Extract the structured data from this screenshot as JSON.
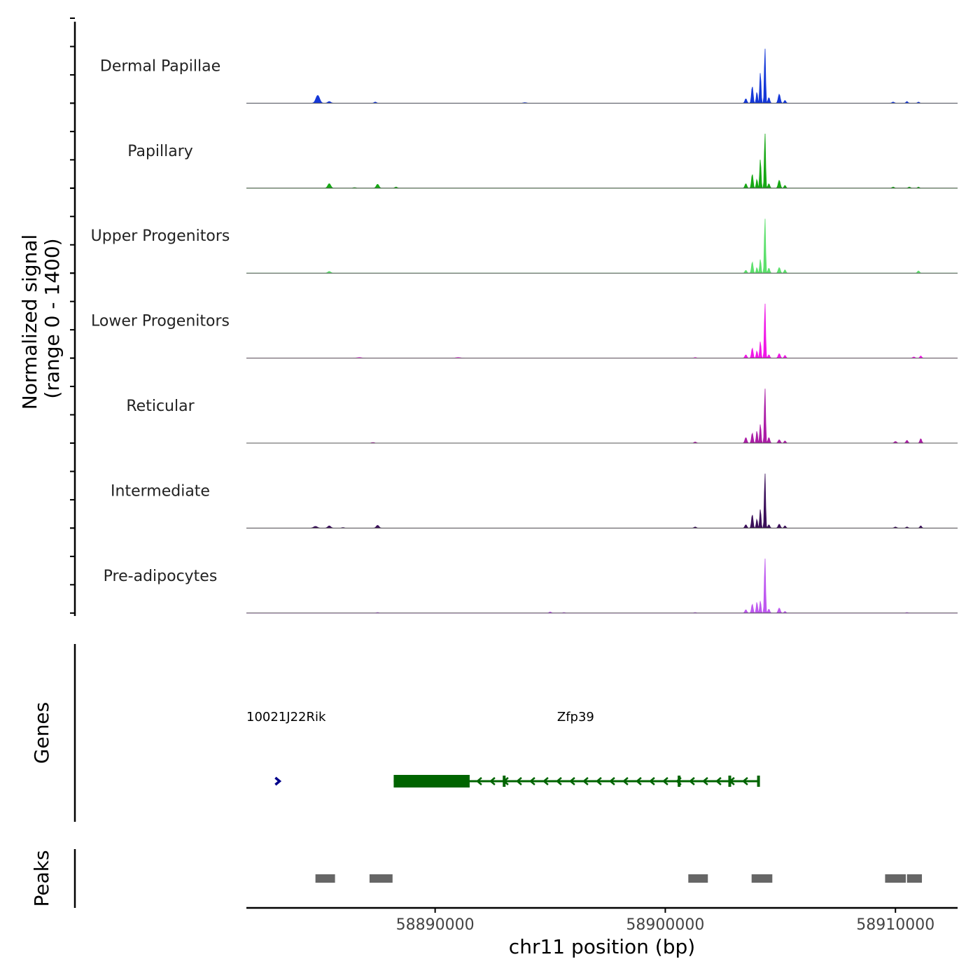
{
  "chart_data": {
    "type": "area",
    "title": "",
    "ylabel": "Normalized signal",
    "ylabel_range": "(range 0 - 1400)",
    "ylim": [
      0,
      1400
    ],
    "xlabel": "chr11 position (bp)",
    "xlim": [
      58881800,
      58912700
    ],
    "x_ticks": [
      58890000,
      58900000,
      58910000
    ],
    "x_tick_labels": [
      "58890000",
      "58900000",
      "58910000"
    ],
    "tracks": [
      {
        "name": "Dermal Papillae",
        "color": "#1538d8",
        "peaks": [
          [
            58884900,
            0.14,
            250
          ],
          [
            58885400,
            0.03,
            200
          ],
          [
            58887400,
            0.02,
            150
          ],
          [
            58893900,
            0.01,
            200
          ],
          [
            58903500,
            0.08,
            130
          ],
          [
            58903780,
            0.3,
            110
          ],
          [
            58903980,
            0.2,
            90
          ],
          [
            58904130,
            0.55,
            90
          ],
          [
            58904330,
            1.0,
            80
          ],
          [
            58904500,
            0.1,
            120
          ],
          [
            58904950,
            0.16,
            140
          ],
          [
            58905200,
            0.05,
            120
          ],
          [
            58909900,
            0.02,
            150
          ],
          [
            58910500,
            0.03,
            120
          ],
          [
            58911000,
            0.02,
            120
          ]
        ]
      },
      {
        "name": "Papillary",
        "color": "#16a814",
        "peaks": [
          [
            58885400,
            0.08,
            200
          ],
          [
            58887500,
            0.07,
            180
          ],
          [
            58888300,
            0.02,
            160
          ],
          [
            58886500,
            0.01,
            200
          ],
          [
            58903500,
            0.08,
            130
          ],
          [
            58903780,
            0.25,
            110
          ],
          [
            58903980,
            0.16,
            90
          ],
          [
            58904130,
            0.52,
            90
          ],
          [
            58904330,
            1.0,
            80
          ],
          [
            58904500,
            0.08,
            120
          ],
          [
            58904950,
            0.14,
            140
          ],
          [
            58905200,
            0.05,
            120
          ],
          [
            58909900,
            0.02,
            150
          ],
          [
            58910600,
            0.02,
            150
          ],
          [
            58911000,
            0.02,
            120
          ]
        ]
      },
      {
        "name": "Upper Progenitors",
        "color": "#5ce06c",
        "peaks": [
          [
            58885400,
            0.03,
            200
          ],
          [
            58903500,
            0.05,
            130
          ],
          [
            58903780,
            0.2,
            110
          ],
          [
            58903980,
            0.1,
            90
          ],
          [
            58904130,
            0.25,
            90
          ],
          [
            58904330,
            1.0,
            80
          ],
          [
            58904500,
            0.09,
            120
          ],
          [
            58904950,
            0.1,
            140
          ],
          [
            58905200,
            0.06,
            120
          ],
          [
            58911000,
            0.04,
            140
          ]
        ]
      },
      {
        "name": "Lower Progenitors",
        "color": "#f018e6",
        "peaks": [
          [
            58886700,
            0.01,
            300
          ],
          [
            58891000,
            0.01,
            300
          ],
          [
            58901300,
            0.01,
            150
          ],
          [
            58903500,
            0.06,
            130
          ],
          [
            58903780,
            0.18,
            110
          ],
          [
            58903980,
            0.13,
            90
          ],
          [
            58904130,
            0.3,
            90
          ],
          [
            58904330,
            1.0,
            80
          ],
          [
            58904500,
            0.06,
            120
          ],
          [
            58904950,
            0.08,
            140
          ],
          [
            58905200,
            0.05,
            120
          ],
          [
            58910800,
            0.02,
            150
          ],
          [
            58911100,
            0.04,
            120
          ]
        ]
      },
      {
        "name": "Reticular",
        "color": "#ab1da6",
        "peaks": [
          [
            58887300,
            0.01,
            200
          ],
          [
            58901300,
            0.02,
            150
          ],
          [
            58903500,
            0.1,
            130
          ],
          [
            58903780,
            0.18,
            110
          ],
          [
            58903980,
            0.22,
            90
          ],
          [
            58904130,
            0.34,
            90
          ],
          [
            58904330,
            1.0,
            80
          ],
          [
            58904500,
            0.1,
            120
          ],
          [
            58904950,
            0.06,
            140
          ],
          [
            58905200,
            0.04,
            120
          ],
          [
            58910000,
            0.03,
            150
          ],
          [
            58910500,
            0.05,
            130
          ],
          [
            58911100,
            0.08,
            120
          ]
        ]
      },
      {
        "name": "Intermediate",
        "color": "#3b0f5a",
        "peaks": [
          [
            58884800,
            0.03,
            250
          ],
          [
            58885400,
            0.04,
            200
          ],
          [
            58887500,
            0.05,
            180
          ],
          [
            58886000,
            0.01,
            150
          ],
          [
            58901300,
            0.02,
            150
          ],
          [
            58903500,
            0.06,
            130
          ],
          [
            58903780,
            0.24,
            110
          ],
          [
            58903980,
            0.16,
            90
          ],
          [
            58904130,
            0.34,
            90
          ],
          [
            58904330,
            1.0,
            80
          ],
          [
            58904500,
            0.06,
            120
          ],
          [
            58904950,
            0.07,
            140
          ],
          [
            58905200,
            0.04,
            120
          ],
          [
            58910000,
            0.02,
            150
          ],
          [
            58910500,
            0.02,
            130
          ],
          [
            58911100,
            0.04,
            120
          ]
        ]
      },
      {
        "name": "Pre-adipocytes",
        "color": "#be58f0",
        "peaks": [
          [
            58887500,
            0.01,
            150
          ],
          [
            58895000,
            0.02,
            150
          ],
          [
            58895600,
            0.01,
            150
          ],
          [
            58901300,
            0.01,
            150
          ],
          [
            58903500,
            0.06,
            130
          ],
          [
            58903780,
            0.16,
            110
          ],
          [
            58903980,
            0.2,
            90
          ],
          [
            58904130,
            0.22,
            90
          ],
          [
            58904330,
            1.0,
            80
          ],
          [
            58904500,
            0.07,
            120
          ],
          [
            58904950,
            0.09,
            140
          ],
          [
            58905200,
            0.03,
            120
          ],
          [
            58910500,
            0.01,
            150
          ]
        ]
      }
    ],
    "genes_label": "Genes",
    "genes": [
      {
        "name": "10021J22Rik",
        "label_x": 58881800,
        "start": 58883150,
        "end": 58883250,
        "strand": "+",
        "color": "#00008b",
        "exons": []
      },
      {
        "name": "Zfp39",
        "label_x": 58895300,
        "start": 58888200,
        "end": 58904100,
        "strand": "-",
        "color": "#006400",
        "exons": [
          [
            58888200,
            58891500
          ]
        ],
        "small_exons": [
          58893000,
          58900600,
          58902800,
          58904050
        ]
      }
    ],
    "peaks_label": "Peaks",
    "peaks_color": "#666666",
    "peak_regions": [
      [
        58884800,
        58885650
      ],
      [
        58887150,
        58888150
      ],
      [
        58901000,
        58901850
      ],
      [
        58903750,
        58904650
      ],
      [
        58909550,
        58910450
      ],
      [
        58910500,
        58911150
      ]
    ]
  }
}
